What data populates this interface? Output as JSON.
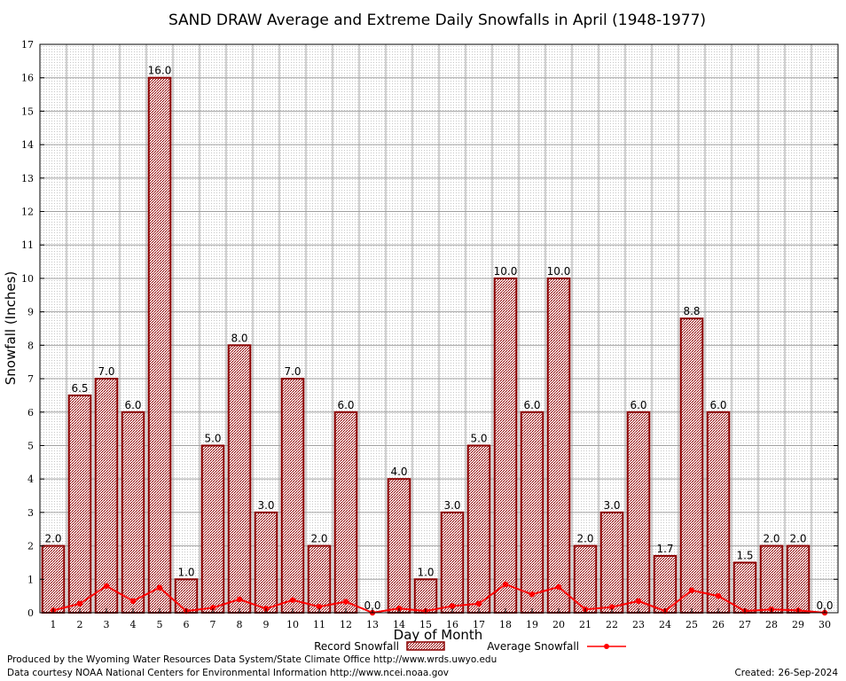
{
  "chart_data": {
    "type": "bar",
    "title": "SAND DRAW Average and Extreme Daily Snowfalls in April (1948-1977)",
    "xlabel": "Day of Month",
    "ylabel": "Snowfall (Inches)",
    "ylim": [
      0,
      17
    ],
    "yticks": [
      0,
      1,
      2,
      3,
      4,
      5,
      6,
      7,
      8,
      9,
      10,
      11,
      12,
      13,
      14,
      15,
      16,
      17
    ],
    "grid": true,
    "legend_position": "bottom",
    "categories": [
      "1",
      "2",
      "3",
      "4",
      "5",
      "6",
      "7",
      "8",
      "9",
      "10",
      "11",
      "12",
      "13",
      "14",
      "15",
      "16",
      "17",
      "18",
      "19",
      "20",
      "21",
      "22",
      "23",
      "24",
      "25",
      "26",
      "27",
      "28",
      "29",
      "30"
    ],
    "series": [
      {
        "name": "Record Snowfall",
        "kind": "bar",
        "color": "#8b0000",
        "values": [
          2.0,
          6.5,
          7.0,
          6.0,
          16.0,
          1.0,
          5.0,
          8.0,
          3.0,
          7.0,
          2.0,
          6.0,
          0.0,
          4.0,
          1.0,
          3.0,
          5.0,
          10.0,
          6.0,
          10.0,
          2.0,
          3.0,
          6.0,
          1.7,
          8.8,
          6.0,
          1.5,
          2.0,
          2.0,
          0.0
        ],
        "labels": [
          "2.0",
          "6.5",
          "7.0",
          "6.0",
          "16.0",
          "1.0",
          "5.0",
          "8.0",
          "3.0",
          "7.0",
          "2.0",
          "6.0",
          "0.0",
          "4.0",
          "1.0",
          "3.0",
          "5.0",
          "10.0",
          "6.0",
          "10.0",
          "2.0",
          "3.0",
          "6.0",
          "1.7",
          "8.8",
          "6.0",
          "1.5",
          "2.0",
          "2.0",
          "0.0"
        ]
      },
      {
        "name": "Average Snowfall",
        "kind": "line",
        "color": "#ff0000",
        "values": [
          0.07,
          0.27,
          0.8,
          0.35,
          0.75,
          0.05,
          0.15,
          0.4,
          0.12,
          0.38,
          0.18,
          0.33,
          0.0,
          0.13,
          0.05,
          0.2,
          0.27,
          0.85,
          0.55,
          0.77,
          0.1,
          0.17,
          0.35,
          0.05,
          0.67,
          0.5,
          0.05,
          0.1,
          0.07,
          0.0
        ]
      }
    ]
  },
  "colors": {
    "bar_outline": "#8b0000",
    "bar_fill": "#e8c4c4",
    "average_line": "#ff0000",
    "grid": "#a0a0a0"
  },
  "footer": {
    "produced_by": "Produced by the Wyoming Water Resources Data System/State Climate Office http://www.wrds.uwyo.edu",
    "courtesy": "Data courtesy NOAA National Centers for Environmental Information http://www.ncei.noaa.gov",
    "created_label": "Created:",
    "created_date": "26-Sep-2024"
  }
}
